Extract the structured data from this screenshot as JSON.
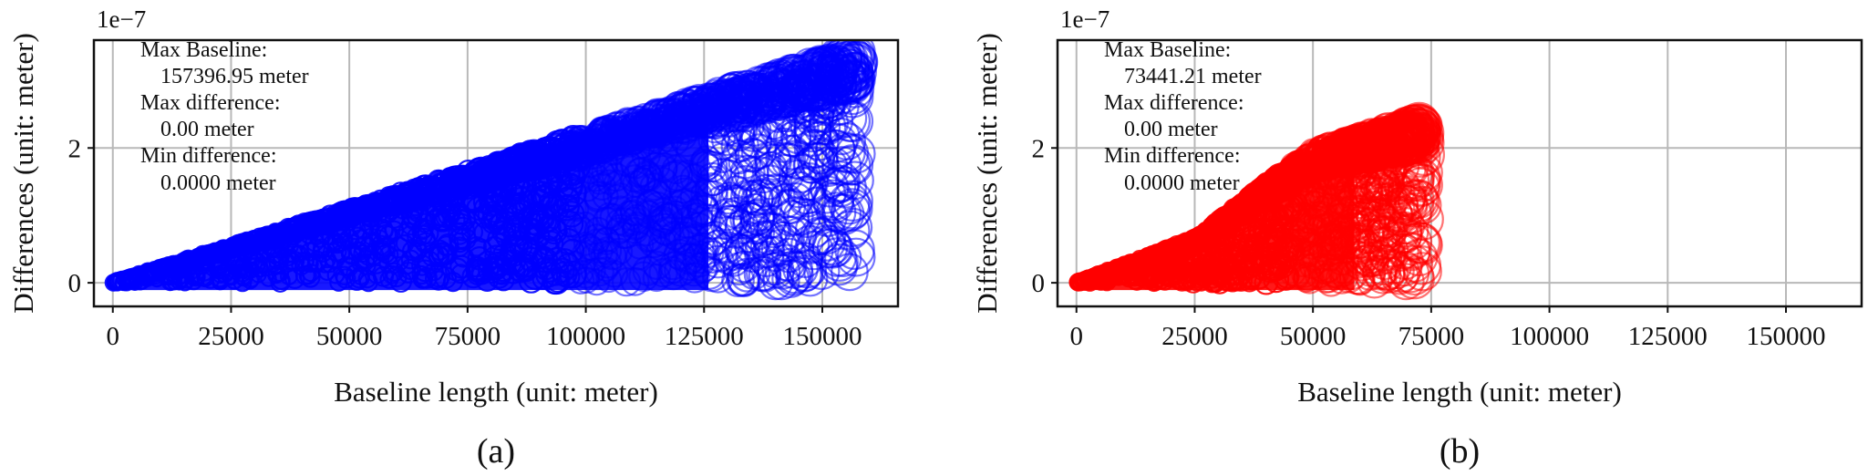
{
  "chart_data": [
    {
      "panel": "(a)",
      "type": "scatter",
      "xlabel": "Baseline length (unit: meter)",
      "ylabel": "Differences  (unit: meter)",
      "y_offset_label": "1e−7",
      "xlim": [
        -4000,
        166000
      ],
      "ylim": [
        -0.35,
        3.6
      ],
      "xticks": [
        0,
        25000,
        50000,
        75000,
        100000,
        125000,
        150000
      ],
      "yticks": [
        0,
        2
      ],
      "grid": true,
      "marker": "hollow circle",
      "color": "#0000ff",
      "max_baseline_x": 157396.95,
      "annotation": [
        "Max Baseline:",
        "157396.95 meter",
        "Max difference:",
        "0.00 meter",
        "Min difference:",
        "0.0000 meter"
      ],
      "envelope_points": [
        [
          0,
          0
        ],
        [
          25000,
          0.55
        ],
        [
          50000,
          1.1
        ],
        [
          75000,
          1.65
        ],
        [
          100000,
          2.2
        ],
        [
          125000,
          2.75
        ],
        [
          157396.95,
          3.45
        ]
      ]
    },
    {
      "panel": "(b)",
      "type": "scatter",
      "xlabel": "Baseline length (unit: meter)",
      "ylabel": "Differences  (unit: meter)",
      "y_offset_label": "1e−7",
      "xlim": [
        -4000,
        166000
      ],
      "ylim": [
        -0.35,
        3.6
      ],
      "xticks": [
        0,
        25000,
        50000,
        75000,
        100000,
        125000,
        150000
      ],
      "yticks": [
        0,
        2
      ],
      "grid": true,
      "marker": "hollow circle",
      "color": "#ff0000",
      "max_baseline_x": 73441.21,
      "annotation": [
        "Max Baseline:",
        "73441.21 meter",
        "Max difference:",
        "0.00 meter",
        "Min difference:",
        "0.0000 meter"
      ],
      "envelope_points": [
        [
          0,
          0
        ],
        [
          25000,
          0.65
        ],
        [
          50000,
          1.95
        ],
        [
          73441.21,
          2.4
        ]
      ]
    }
  ]
}
